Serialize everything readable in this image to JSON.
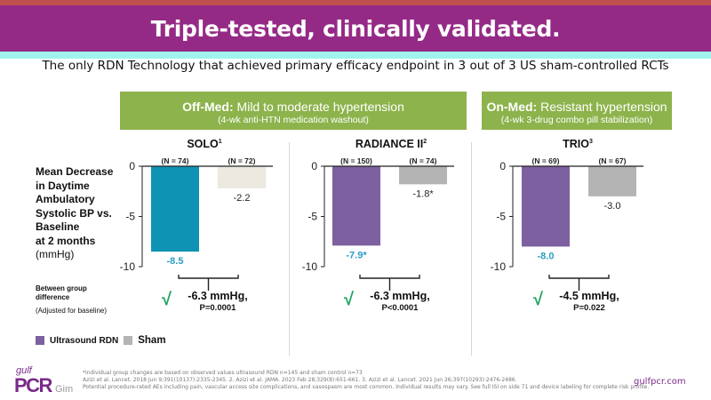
{
  "header": {
    "title": "Triple-tested, clinically validated.",
    "subtitle": "The only RDN Technology that achieved primary efficacy endpoint  in 3 out of 3 US sham-controlled RCTs"
  },
  "groups": [
    {
      "bold": "Off-Med:",
      "main": " Mild to moderate hypertension",
      "sub": "(4-wk anti-HTN medication washout)"
    },
    {
      "bold": "On-Med:",
      "main": " Resistant hypertension",
      "sub": "(4-wk 3-drug combo pill stabilization)"
    }
  ],
  "y_axis_label": {
    "lines": [
      "Mean Decrease",
      "in Daytime",
      "Ambulatory",
      "Systolic BP vs.",
      "Baseline",
      "at 2 months"
    ],
    "unit": "(mmHg)"
  },
  "between_group": {
    "line1": "Between group",
    "line2": "difference",
    "note": "(Adjusted for baseline)"
  },
  "legend": [
    {
      "label": "Ultrasound RDN",
      "color": "#7d60a0"
    },
    {
      "label": "Sham",
      "color": "#b4b4b4"
    }
  ],
  "check_icon": "√",
  "chart_data": [
    {
      "type": "bar",
      "title": "SOLO",
      "title_sup": "1",
      "categories": [
        "Ultrasound RDN",
        "Sham"
      ],
      "n_labels": [
        "(N = 74)",
        "(N = 72)"
      ],
      "values": [
        -8.5,
        -2.2
      ],
      "value_labels": [
        "-8.5",
        "-2.2"
      ],
      "bar_colors": [
        "#0e93b4",
        "#ebe9e0"
      ],
      "label_colors": [
        "#2a9cc4",
        "#222222"
      ],
      "ylim": [
        -10,
        0
      ],
      "yticks": [
        0,
        -5,
        -10
      ],
      "difference": {
        "value": "-6.3 mmHg,",
        "p": "P=0.0001"
      }
    },
    {
      "type": "bar",
      "title": "RADIANCE II",
      "title_sup": "2",
      "categories": [
        "Ultrasound RDN",
        "Sham"
      ],
      "n_labels": [
        "(N = 150)",
        "(N = 74)"
      ],
      "values": [
        -7.9,
        -1.8
      ],
      "value_labels": [
        "-7.9*",
        "-1.8*"
      ],
      "bar_colors": [
        "#7d60a0",
        "#b4b4b4"
      ],
      "label_colors": [
        "#2a9cc4",
        "#222222"
      ],
      "ylim": [
        -10,
        0
      ],
      "yticks": [
        0,
        -5,
        -10
      ],
      "difference": {
        "value": "-6.3 mmHg,",
        "p": "P<0.0001"
      }
    },
    {
      "type": "bar",
      "title": "TRIO",
      "title_sup": "3",
      "categories": [
        "Ultrasound RDN",
        "Sham"
      ],
      "n_labels": [
        "(N = 69)",
        "(N = 67)"
      ],
      "values": [
        -8.0,
        -3.0
      ],
      "value_labels": [
        "-8.0",
        "-3.0"
      ],
      "bar_colors": [
        "#7d60a0",
        "#b4b4b4"
      ],
      "label_colors": [
        "#2a9cc4",
        "#222222"
      ],
      "ylim": [
        -10,
        0
      ],
      "yticks": [
        0,
        -5,
        -10
      ],
      "difference": {
        "value": "-4.5 mmHg,",
        "p": "P=0.022"
      }
    }
  ],
  "footer": {
    "lines": [
      "*individual group changes are based on observed values ultrasound RDN n=145 and sham control n=73",
      "Azizi et al. Lancet. 2018 Jun 9;391(10137):2335-2345. 2. Azizi et al. JAMA. 2023 Feb 28;329(8):651-661.  3. Azizi et al. Lancet. 2021 Jun 26;397(10293):2476-2486.",
      "Potential procedure-rated AEs including pain, vascular access site complications, and vasospasm are most common. Individual results may vary. See full ISI on side 71 and device labeling for complete risk profile."
    ],
    "logo_top": "gulf",
    "logo_main": "PCR",
    "logo_suffix": "Gim",
    "site": "gulfpcr.com"
  }
}
